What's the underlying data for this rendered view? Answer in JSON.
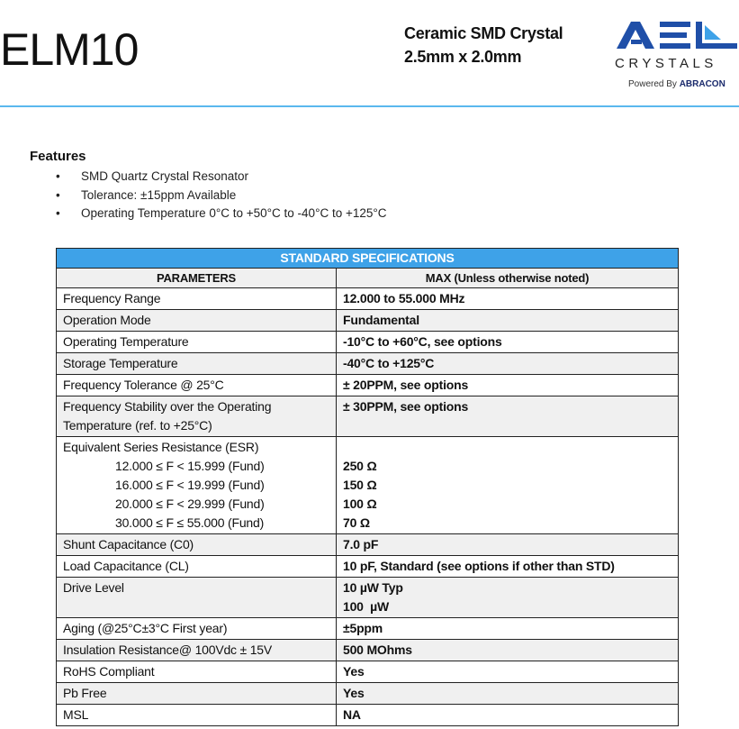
{
  "header": {
    "title": "ELM10",
    "subtitle_line1": "Ceramic SMD Crystal",
    "subtitle_line2": "2.5mm x 2.0mm",
    "logo": {
      "text": "AEL",
      "sub": "CRYSTALS",
      "powered_prefix": "Powered By",
      "powered_brand": "ABRACON",
      "colors": {
        "primary": "#1f4fa8",
        "accent": "#3ea2e8"
      }
    }
  },
  "features": {
    "heading": "Features",
    "items": [
      "SMD Quartz Crystal Resonator",
      "Tolerance: ±15ppm Available",
      "Operating Temperature 0°C to +50°C to -40°C to +125°C"
    ]
  },
  "table": {
    "banner": "STANDARD SPECIFICATIONS",
    "col_param": "PARAMETERS",
    "col_max": "MAX (Unless otherwise noted)",
    "rows": [
      {
        "p": "Frequency Range",
        "v": "12.000 to 55.000 MHz"
      },
      {
        "p": "Operation Mode",
        "v": "Fundamental"
      },
      {
        "p": "Operating Temperature",
        "v": "-10°C to +60°C, see options"
      },
      {
        "p": "Storage Temperature",
        "v": "-40°C to +125°C"
      },
      {
        "p": "Frequency Tolerance @ 25°C",
        "v": "± 20PPM, see options"
      },
      {
        "p": "Frequency Stability over the Operating",
        "p2": "Temperature (ref. to +25°C)",
        "v": "± 30PPM, see options"
      }
    ],
    "esr": {
      "p": "Equivalent Series Resistance (ESR)",
      "items": [
        {
          "range": "12.000 ≤ F < 15.999 (Fund)",
          "v": "250 Ω"
        },
        {
          "range": "16.000 ≤ F < 19.999 (Fund)",
          "v": "150 Ω"
        },
        {
          "range": "20.000 ≤ F < 29.999 (Fund)",
          "v": "100 Ω"
        },
        {
          "range": "30.000 ≤ F ≤ 55.000 (Fund)",
          "v": "70 Ω"
        }
      ]
    },
    "rows2": [
      {
        "p": "Shunt Capacitance (C0)",
        "v": "7.0 pF"
      },
      {
        "p": "Load Capacitance (CL)",
        "v": "10 pF, Standard (see options if other than STD)"
      },
      {
        "p": "Drive Level",
        "v": "10 µW Typ",
        "v2": "100  µW"
      },
      {
        "p": "Aging (@25°C±3°C First year)",
        "v": "±5ppm"
      },
      {
        "p": "Insulation Resistance@ 100Vdc ± 15V",
        "v": "500 MOhms"
      },
      {
        "p": "RoHS Compliant",
        "v": "Yes"
      },
      {
        "p": "Pb Free",
        "v": "Yes"
      },
      {
        "p": "MSL",
        "v": "NA"
      }
    ]
  }
}
